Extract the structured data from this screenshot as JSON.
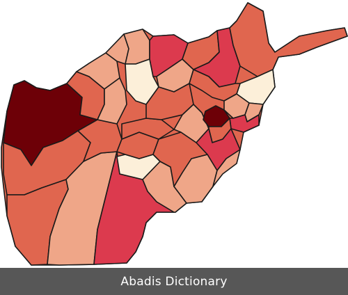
{
  "footer": {
    "caption": "Abadis Dictionary"
  },
  "map": {
    "colors": {
      "lightest": "#fcefd9",
      "light": "#efa688",
      "medium": "#e0664f",
      "strong": "#dc3a4e",
      "darkest": "#6d0007",
      "border": "#1a1a1a"
    }
  }
}
